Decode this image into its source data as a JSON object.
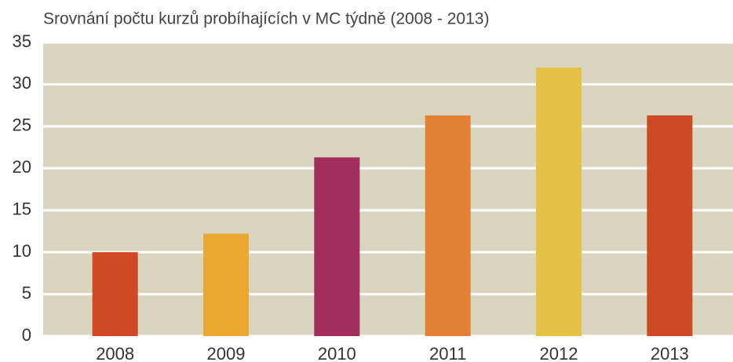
{
  "chart_data": {
    "type": "bar",
    "title": "Srovnání počtu kurzů probíhajících v MC týdně (2008 - 2013)",
    "categories": [
      "2008",
      "2009",
      "2010",
      "2011",
      "2012",
      "2013"
    ],
    "values": [
      10,
      12.2,
      21.3,
      26.3,
      32,
      26.3
    ],
    "colors": [
      "#cf4a24",
      "#eba72e",
      "#a22e5e",
      "#e38035",
      "#e5c243",
      "#cf4a24"
    ],
    "ylim": [
      0,
      35
    ],
    "yticks": [
      0,
      5,
      10,
      15,
      20,
      25,
      30,
      35
    ],
    "grid": true,
    "plot_background": "#d9d5be"
  }
}
